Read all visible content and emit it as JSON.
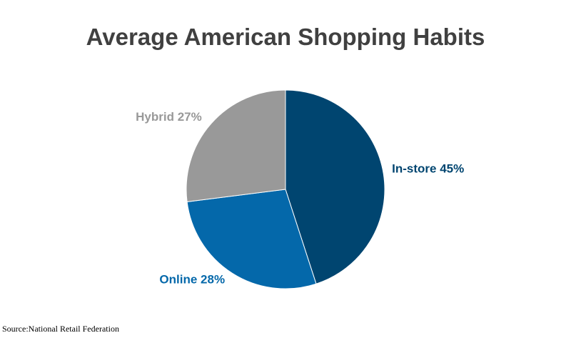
{
  "chart_data": {
    "type": "pie",
    "title": "Average American Shopping Habits",
    "categories": [
      "In-store",
      "Online",
      "Hybrid"
    ],
    "values": [
      45,
      28,
      27
    ],
    "value_labels": [
      "45%",
      "28%",
      "27%"
    ],
    "colors": [
      "#004570",
      "#0468aa",
      "#999999"
    ],
    "source": "Source:National Retail Federation"
  }
}
